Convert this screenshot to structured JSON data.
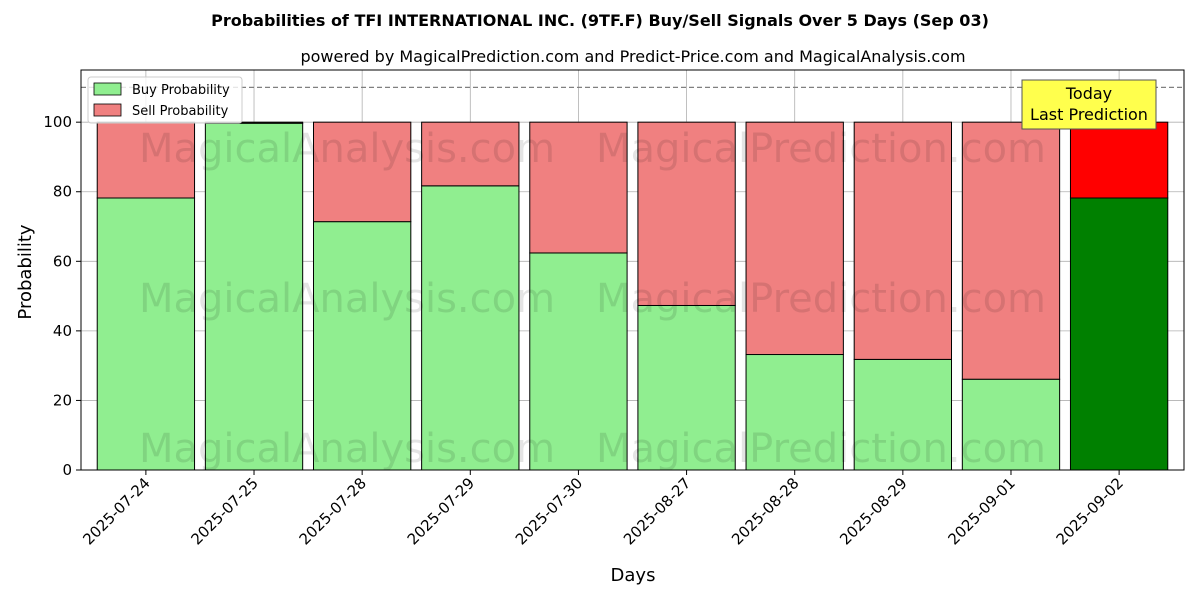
{
  "chart_data": {
    "type": "bar",
    "stacked": true,
    "title": "Probabilities of TFI INTERNATIONAL INC. (9TF.F) Buy/Sell Signals Over 5 Days (Sep 03)",
    "subtitle": "powered by MagicalPrediction.com and Predict-Price.com and MagicalAnalysis.com",
    "xlabel": "Days",
    "ylabel": "Probability",
    "ylim": [
      0,
      115
    ],
    "yticks": [
      0,
      20,
      40,
      60,
      80,
      100
    ],
    "grid": true,
    "legend_position": "top-left",
    "reference_line": 110,
    "categories": [
      "2025-07-24",
      "2025-07-25",
      "2025-07-28",
      "2025-07-29",
      "2025-07-30",
      "2025-08-27",
      "2025-08-28",
      "2025-08-29",
      "2025-09-01",
      "2025-09-02"
    ],
    "series": [
      {
        "name": "Buy Probability",
        "values": [
          78.2,
          99.7,
          71.4,
          81.7,
          62.4,
          47.3,
          33.2,
          31.8,
          26.1,
          78.2
        ],
        "color": "#90ee90",
        "highlight_color": "#008000"
      },
      {
        "name": "Sell Probability",
        "values": [
          21.8,
          0.3,
          28.6,
          18.3,
          37.6,
          52.7,
          66.8,
          68.2,
          73.9,
          21.8
        ],
        "color": "#f08080",
        "highlight_color": "#ff0000"
      }
    ],
    "highlight_index": 9,
    "annotation": {
      "lines": [
        "Today",
        "Last Prediction"
      ],
      "background": "#ffff4d"
    },
    "watermarks": [
      "MagicalAnalysis.com",
      "MagicalPrediction.com"
    ]
  }
}
